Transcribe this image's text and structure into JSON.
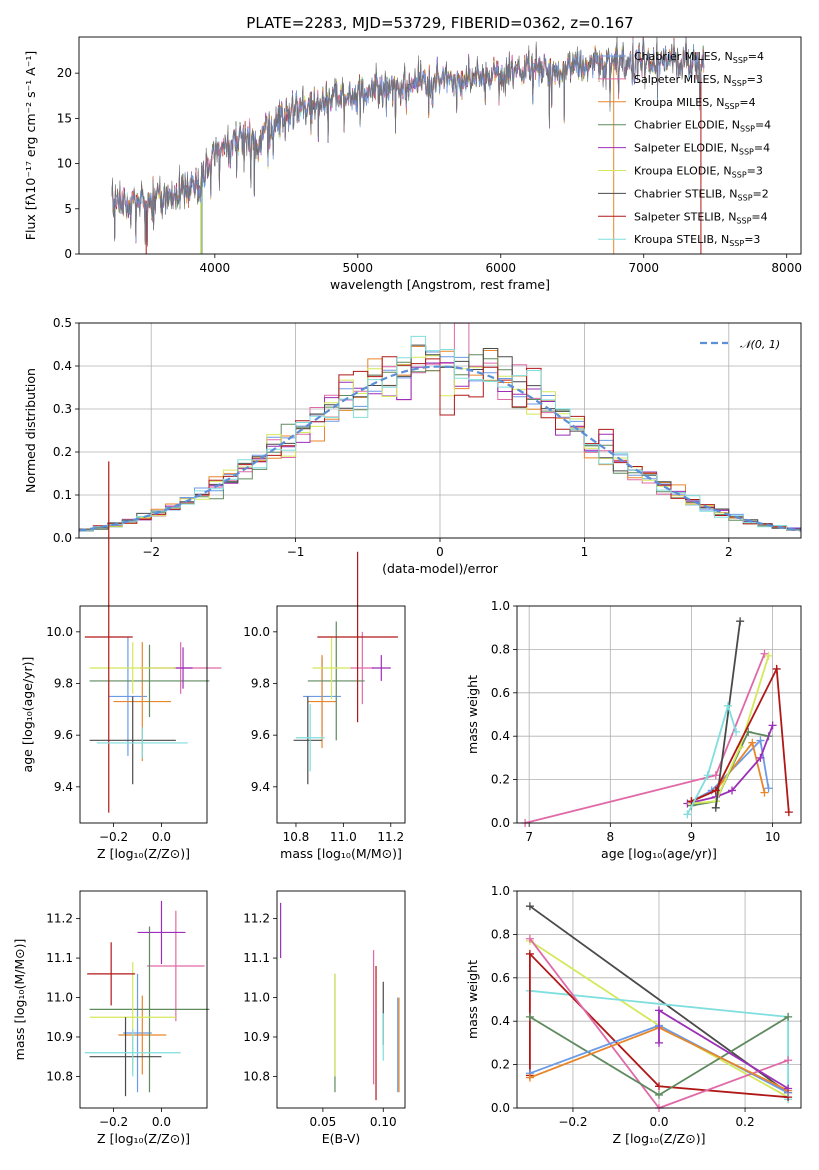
{
  "title": "PLATE=2283, MJD=53729, FIBERID=0362, z=0.167",
  "colors": {
    "chabrier_miles": "#6b9ae6",
    "salpeter_miles": "#e06aa8",
    "kroupa_miles": "#e8862a",
    "chabrier_elodie": "#5e8a5e",
    "salpeter_elodie": "#9b2fb8",
    "kroupa_elodie": "#d4e85a",
    "chabrier_stelib": "#4a4a4a",
    "salpeter_stelib": "#b01818",
    "kroupa_stelib": "#80dede",
    "gaussian": "#5b8fd8"
  },
  "chart_data": [
    {
      "id": "spectrum",
      "type": "line",
      "xlabel": "wavelength [Angstrom, rest frame]",
      "ylabel": "Flux [fλ10⁻¹⁷ erg cm⁻² s⁻¹ A⁻¹]",
      "xlim": [
        3050,
        8100
      ],
      "ylim": [
        0,
        24
      ],
      "xticks": [
        "4000",
        "5000",
        "6000",
        "7000",
        "8000"
      ],
      "yticks": [
        "0",
        "5",
        "10",
        "15",
        "20"
      ],
      "continuum": {
        "x": [
          3280,
          3500,
          3650,
          3800,
          3900,
          4000,
          4100,
          4200,
          4300,
          4400,
          4600,
          4800,
          5000,
          5200,
          5400,
          5600,
          5800,
          6000,
          6200,
          6400,
          6600,
          6800,
          7000,
          7200,
          7400
        ],
        "y": [
          5.5,
          5.8,
          6.5,
          7.2,
          8.0,
          11.0,
          12.5,
          13.0,
          12.5,
          14.5,
          16.0,
          17.0,
          17.5,
          18.5,
          19.0,
          19.5,
          19.5,
          20.0,
          20.5,
          20.5,
          21.0,
          21.0,
          21.0,
          21.5,
          21.0
        ]
      },
      "legend": [
        "Chabrier MILES, N$_{SSP}$=4",
        "Salpeter MILES, N$_{SSP}$=3",
        "Kroupa MILES, N$_{SSP}$=4",
        "Chabrier ELODIE, N$_{SSP}$=4",
        "Salpeter ELODIE, N$_{SSP}$=4",
        "Kroupa ELODIE, N$_{SSP}$=3",
        "Chabrier STELIB, N$_{SSP}$=2",
        "Salpeter STELIB, N$_{SSP}$=4",
        "Kroupa STELIB, N$_{SSP}$=3"
      ],
      "legend_display": [
        [
          "Chabrier MILES, N",
          "SSP",
          "=4"
        ],
        [
          "Salpeter MILES, N",
          "SSP",
          "=3"
        ],
        [
          "Kroupa MILES, N",
          "SSP",
          "=4"
        ],
        [
          "Chabrier ELODIE, N",
          "SSP",
          "=4"
        ],
        [
          "Salpeter ELODIE, N",
          "SSP",
          "=4"
        ],
        [
          "Kroupa ELODIE, N",
          "SSP",
          "=3"
        ],
        [
          "Chabrier STELIB, N",
          "SSP",
          "=2"
        ],
        [
          "Salpeter STELIB, N",
          "SSP",
          "=4"
        ],
        [
          "Kroupa STELIB, N",
          "SSP",
          "=3"
        ]
      ],
      "legend_placement": "right",
      "model_cutoffs": [
        {
          "model": "salpeter_stelib",
          "x": 3520
        },
        {
          "model": "kroupa_elodie",
          "x": 3900
        },
        {
          "model": "chabrier_elodie",
          "x": 3910
        },
        {
          "model": "kroupa_miles",
          "x": 6790
        },
        {
          "model": "salpeter_stelib",
          "x": 7400
        }
      ]
    },
    {
      "id": "residuals",
      "type": "bar",
      "xlabel": "(data-model)/error",
      "ylabel": "Normed distribution",
      "xlim": [
        -2.5,
        2.5
      ],
      "ylim": [
        0,
        0.5
      ],
      "xticks": [
        "−2",
        "−1",
        "0",
        "1",
        "2"
      ],
      "yticks": [
        "0.0",
        "0.1",
        "0.2",
        "0.3",
        "0.4",
        "0.5"
      ],
      "grid": true,
      "legend_placement": "top-right",
      "gaussian_label": "𝒩(0, 1)",
      "bin_width": 0.1
    },
    {
      "id": "z_age",
      "type": "scatter",
      "xlabel": "Z [log₁₀(Z/Z⊙)]",
      "ylabel": "age  [log₁₀(age/yr)]",
      "xlim": [
        -0.34,
        0.19
      ],
      "ylim": [
        9.26,
        10.1
      ],
      "xticks": [
        "−0.2",
        "0.0"
      ],
      "yticks": [
        "9.4",
        "9.6",
        "9.8",
        "10.0"
      ],
      "points": [
        {
          "model": "chabrier_miles",
          "x": -0.14,
          "y": 9.75,
          "xerr": 0.08,
          "yerr": 0.23
        },
        {
          "model": "salpeter_miles",
          "x": 0.08,
          "y": 9.86,
          "xerr": 0.17,
          "yerr": 0.1
        },
        {
          "model": "kroupa_miles",
          "x": -0.08,
          "y": 9.73,
          "xerr": 0.12,
          "yerr": 0.23
        },
        {
          "model": "chabrier_elodie",
          "x": -0.05,
          "y": 9.81,
          "xerr": 0.25,
          "yerr": 0.14
        },
        {
          "model": "salpeter_elodie",
          "x": 0.09,
          "y": 9.86,
          "xerr": 0.04,
          "yerr": 0.08
        },
        {
          "model": "kroupa_elodie",
          "x": -0.12,
          "y": 9.86,
          "xerr": 0.18,
          "yerr": 0.1
        },
        {
          "model": "chabrier_stelib",
          "x": -0.12,
          "y": 9.58,
          "xerr": 0.18,
          "yerr": 0.17
        },
        {
          "model": "salpeter_stelib",
          "x": -0.22,
          "y": 9.98,
          "xerr": 0.1,
          "yerr": 0.68
        },
        {
          "model": "kroupa_stelib",
          "x": -0.08,
          "y": 9.57,
          "xerr": 0.19,
          "yerr": 0.06
        }
      ]
    },
    {
      "id": "mass_age",
      "type": "scatter",
      "xlabel": "mass [log₁₀(M/M⊙)]",
      "ylabel": "",
      "xlim": [
        10.72,
        11.26
      ],
      "ylim": [
        9.26,
        10.1
      ],
      "xticks": [
        "10.8",
        "11.0",
        "11.2"
      ],
      "yticks": [
        "9.4",
        "9.6",
        "9.8",
        "10.0"
      ],
      "points": [
        {
          "model": "chabrier_miles",
          "x": 10.91,
          "y": 9.75,
          "xerr": 0.08,
          "yerr": 0.15
        },
        {
          "model": "salpeter_miles",
          "x": 11.08,
          "y": 9.86,
          "xerr": 0.05,
          "yerr": 0.14
        },
        {
          "model": "kroupa_miles",
          "x": 10.91,
          "y": 9.73,
          "xerr": 0.06,
          "yerr": 0.18
        },
        {
          "model": "chabrier_elodie",
          "x": 10.97,
          "y": 9.81,
          "xerr": 0.12,
          "yerr": 0.23
        },
        {
          "model": "salpeter_elodie",
          "x": 11.16,
          "y": 9.86,
          "xerr": 0.04,
          "yerr": 0.05
        },
        {
          "model": "kroupa_elodie",
          "x": 10.95,
          "y": 9.86,
          "xerr": 0.08,
          "yerr": 0.12
        },
        {
          "model": "chabrier_stelib",
          "x": 10.85,
          "y": 9.58,
          "xerr": 0.06,
          "yerr": 0.17
        },
        {
          "model": "salpeter_stelib",
          "x": 11.06,
          "y": 9.98,
          "xerr": 0.17,
          "yerr": 0.33
        },
        {
          "model": "kroupa_stelib",
          "x": 10.86,
          "y": 9.59,
          "xerr": 0.06,
          "yerr": 0.13
        }
      ]
    },
    {
      "id": "age_weight",
      "type": "line",
      "xlabel": "age  [log₁₀(age/yr)]",
      "ylabel": "mass weight",
      "xlim": [
        6.85,
        10.35
      ],
      "ylim": [
        0,
        1
      ],
      "xticks": [
        "7",
        "8",
        "9",
        "10"
      ],
      "yticks": [
        "0.0",
        "0.2",
        "0.4",
        "0.6",
        "0.8",
        "1.0"
      ],
      "grid": true,
      "series": [
        {
          "model": "salpeter_miles",
          "x": [
            6.95,
            9.3,
            9.9
          ],
          "y": [
            0.0,
            0.22,
            0.78
          ]
        },
        {
          "model": "chabrier_miles",
          "x": [
            9.0,
            9.25,
            9.85,
            9.95
          ],
          "y": [
            0.1,
            0.15,
            0.38,
            0.16
          ]
        },
        {
          "model": "kroupa_miles",
          "x": [
            9.0,
            9.3,
            9.75,
            9.9
          ],
          "y": [
            0.1,
            0.15,
            0.37,
            0.14
          ]
        },
        {
          "model": "chabrier_elodie",
          "x": [
            9.0,
            9.3,
            9.7,
            9.95
          ],
          "y": [
            0.08,
            0.1,
            0.42,
            0.4
          ]
        },
        {
          "model": "salpeter_elodie",
          "x": [
            8.95,
            9.3,
            9.5,
            9.85,
            10.0
          ],
          "y": [
            0.09,
            0.12,
            0.15,
            0.3,
            0.45
          ]
        },
        {
          "model": "kroupa_elodie",
          "x": [
            9.0,
            9.3,
            9.6,
            9.95
          ],
          "y": [
            0.09,
            0.1,
            0.35,
            0.77
          ]
        },
        {
          "model": "chabrier_stelib",
          "x": [
            9.3,
            9.6
          ],
          "y": [
            0.07,
            0.93
          ]
        },
        {
          "model": "salpeter_stelib",
          "x": [
            9.0,
            9.3,
            10.05,
            10.2
          ],
          "y": [
            0.1,
            0.15,
            0.71,
            0.05
          ]
        },
        {
          "model": "kroupa_stelib",
          "x": [
            8.95,
            9.2,
            9.45,
            9.55
          ],
          "y": [
            0.04,
            0.22,
            0.54,
            0.42
          ]
        }
      ]
    },
    {
      "id": "z_mass",
      "type": "scatter",
      "xlabel": "Z [log₁₀(Z/Z⊙)]",
      "ylabel": "mass [log₁₀(M/M⊙)]",
      "xlim": [
        -0.34,
        0.19
      ],
      "ylim": [
        10.72,
        11.27
      ],
      "xticks": [
        "−0.2",
        "0.0"
      ],
      "yticks": [
        "10.8",
        "10.9",
        "11.0",
        "11.1",
        "11.2"
      ],
      "points": [
        {
          "model": "chabrier_miles",
          "x": -0.1,
          "y": 10.91,
          "xerr": 0.06,
          "yerr": 0.15
        },
        {
          "model": "salpeter_miles",
          "x": 0.06,
          "y": 11.08,
          "xerr": 0.12,
          "yerr": 0.14
        },
        {
          "model": "kroupa_miles",
          "x": -0.08,
          "y": 10.905,
          "xerr": 0.1,
          "yerr": 0.1
        },
        {
          "model": "chabrier_elodie",
          "x": -0.05,
          "y": 10.97,
          "xerr": 0.25,
          "yerr": 0.21
        },
        {
          "model": "salpeter_elodie",
          "x": 0.0,
          "y": 11.165,
          "xerr": 0.1,
          "yerr": 0.08
        },
        {
          "model": "kroupa_elodie",
          "x": -0.12,
          "y": 10.95,
          "xerr": 0.18,
          "yerr": 0.14
        },
        {
          "model": "chabrier_stelib",
          "x": -0.15,
          "y": 10.85,
          "xerr": 0.15,
          "yerr": 0.1
        },
        {
          "model": "salpeter_stelib",
          "x": -0.21,
          "y": 11.06,
          "xerr": 0.1,
          "yerr": 0.08
        },
        {
          "model": "kroupa_stelib",
          "x": -0.12,
          "y": 10.86,
          "xerr": 0.2,
          "yerr": 0.06
        }
      ]
    },
    {
      "id": "ebv_mass",
      "type": "scatter",
      "xlabel": "E(B-V)",
      "ylabel": "",
      "xlim": [
        0.012,
        0.118
      ],
      "ylim": [
        10.72,
        11.27
      ],
      "xticks": [
        "0.05",
        "0.10"
      ],
      "yticks": [
        "10.8",
        "10.9",
        "11.0",
        "11.1",
        "11.2"
      ],
      "points": [
        {
          "model": "salpeter_elodie",
          "x": 0.015,
          "y": 11.17,
          "yerr": 0.07
        },
        {
          "model": "chabrier_elodie",
          "x": 0.06,
          "y": 10.91,
          "yerr": 0.15
        },
        {
          "model": "kroupa_elodie",
          "x": 0.06,
          "y": 10.93,
          "yerr": 0.13
        },
        {
          "model": "salpeter_miles",
          "x": 0.092,
          "y": 10.95,
          "yerr": 0.17
        },
        {
          "model": "salpeter_stelib",
          "x": 0.094,
          "y": 10.91,
          "yerr": 0.17
        },
        {
          "model": "chabrier_stelib",
          "x": 0.1,
          "y": 10.96,
          "yerr": 0.08
        },
        {
          "model": "kroupa_stelib",
          "x": 0.1,
          "y": 10.9,
          "yerr": 0.06
        },
        {
          "model": "chabrier_miles",
          "x": 0.112,
          "y": 10.88,
          "yerr": 0.12
        },
        {
          "model": "kroupa_miles",
          "x": 0.113,
          "y": 10.88,
          "yerr": 0.12
        }
      ]
    },
    {
      "id": "z_weight",
      "type": "line",
      "xlabel": "Z [log₁₀(Z/Z⊙)]",
      "ylabel": "mass weight",
      "xlim": [
        -0.33,
        0.33
      ],
      "ylim": [
        0,
        1
      ],
      "xticks": [
        "−0.2",
        "0.0",
        "0.2"
      ],
      "yticks": [
        "0.0",
        "0.2",
        "0.4",
        "0.6",
        "0.8",
        "1.0"
      ],
      "grid": true,
      "series": [
        {
          "model": "chabrier_stelib",
          "x": [
            -0.3,
            0.3
          ],
          "y": [
            0.93,
            0.07
          ]
        },
        {
          "model": "kroupa_elodie",
          "x": [
            -0.3,
            0.0,
            0.3
          ],
          "y": [
            0.77,
            0.38,
            0.05
          ]
        },
        {
          "model": "kroupa_stelib",
          "x": [
            -0.3,
            0.3,
            0.3
          ],
          "y": [
            0.54,
            0.42,
            0.04
          ]
        },
        {
          "model": "salpeter_stelib",
          "x": [
            -0.3,
            -0.3,
            0.0,
            0.3
          ],
          "y": [
            0.15,
            0.71,
            0.1,
            0.05
          ]
        },
        {
          "model": "salpeter_miles",
          "x": [
            -0.3,
            0.0,
            0.3
          ],
          "y": [
            0.78,
            0.0,
            0.22
          ]
        },
        {
          "model": "chabrier_elodie",
          "x": [
            -0.3,
            0.0,
            0.3
          ],
          "y": [
            0.42,
            0.06,
            0.42
          ]
        },
        {
          "model": "chabrier_miles",
          "x": [
            -0.3,
            0.0,
            0.3
          ],
          "y": [
            0.16,
            0.38,
            0.07
          ]
        },
        {
          "model": "kroupa_miles",
          "x": [
            -0.3,
            0.0,
            0.3
          ],
          "y": [
            0.14,
            0.37,
            0.08
          ]
        },
        {
          "model": "salpeter_elodie",
          "x": [
            0.0,
            0.0,
            0.3
          ],
          "y": [
            0.3,
            0.45,
            0.09
          ]
        }
      ]
    }
  ]
}
